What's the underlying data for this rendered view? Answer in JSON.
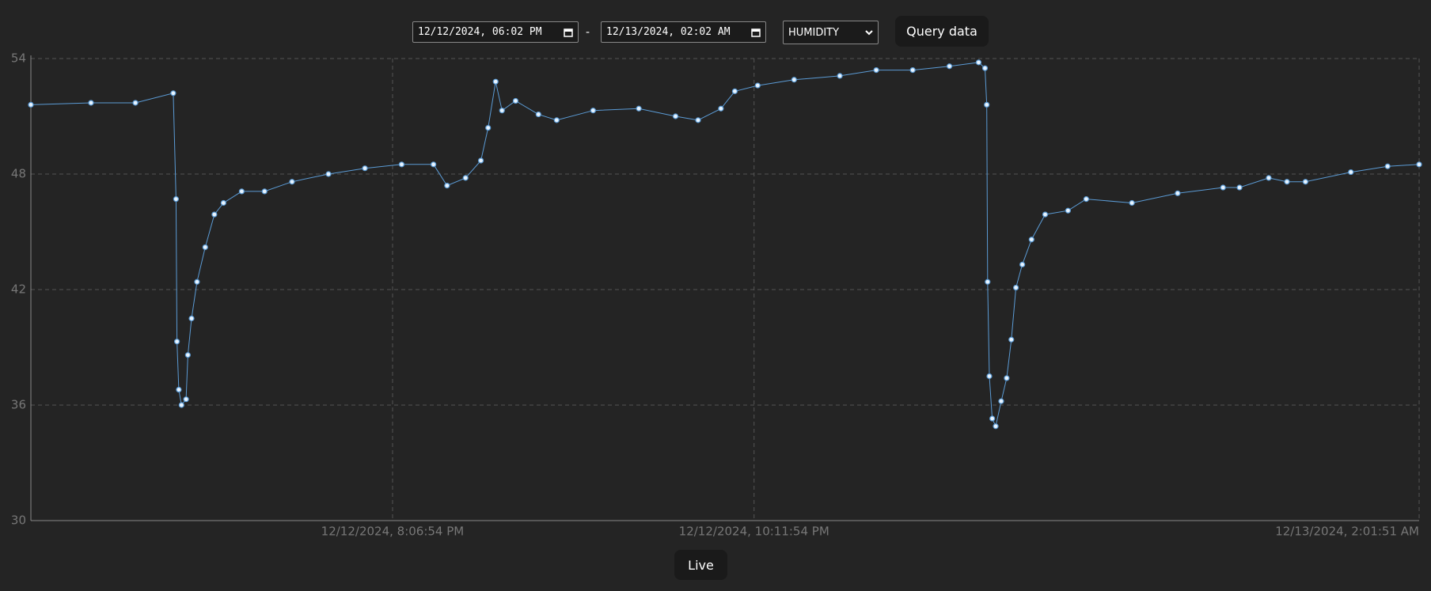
{
  "controls": {
    "start": "12/12/2024, 06:02 PM",
    "separator": "-",
    "end": "12/13/2024, 02:02 AM",
    "metric": "HUMIDITY",
    "query": "Query data",
    "live": "Live"
  },
  "chart_data": {
    "type": "line",
    "color": "#5b9bd5",
    "marker_fill": "#e8f4ff",
    "grid": true,
    "x": [
      "2024-12-12T18:01:51",
      "2024-12-12T18:22:39",
      "2024-12-12T18:38:00",
      "2024-12-12T18:51:05",
      "2024-12-12T18:52:02",
      "2024-12-12T18:52:22",
      "2024-12-12T18:53:00",
      "2024-12-12T18:53:56",
      "2024-12-12T18:55:31",
      "2024-12-12T18:56:08",
      "2024-12-12T18:57:25",
      "2024-12-12T18:59:18",
      "2024-12-12T19:02:08",
      "2024-12-12T19:05:18",
      "2024-12-12T19:08:27",
      "2024-12-12T19:14:45",
      "2024-12-12T19:22:39",
      "2024-12-12T19:32:09",
      "2024-12-12T19:44:45",
      "2024-12-12T19:57:21",
      "2024-12-12T20:10:03",
      "2024-12-12T20:21:03",
      "2024-12-12T20:25:45",
      "2024-12-12T20:32:09",
      "2024-12-12T20:37:27",
      "2024-12-12T20:39:57",
      "2024-12-12T20:42:33",
      "2024-12-12T20:44:45",
      "2024-12-12T20:49:27",
      "2024-12-12T20:57:21",
      "2024-12-12T21:03:39",
      "2024-12-12T21:16:15",
      "2024-12-12T21:32:03",
      "2024-12-12T21:44:45",
      "2024-12-12T21:52:33",
      "2024-12-12T22:00:27",
      "2024-12-12T22:05:15",
      "2024-12-12T22:13:09",
      "2024-12-12T22:25:45",
      "2024-12-12T22:41:33",
      "2024-12-12T22:54:09",
      "2024-12-12T23:06:45",
      "2024-12-12T23:19:27",
      "2024-12-12T23:29:33",
      "2024-12-12T23:31:45",
      "2024-12-12T23:32:21",
      "2024-12-12T23:32:39",
      "2024-12-12T23:33:15",
      "2024-12-12T23:34:15",
      "2024-12-12T23:35:27",
      "2024-12-12T23:37:21",
      "2024-12-12T23:39:15",
      "2024-12-12T23:40:51",
      "2024-12-12T23:42:27",
      "2024-12-12T23:44:39",
      "2024-12-12T23:47:51",
      "2024-12-12T23:52:33",
      "2024-12-13T00:00:27",
      "2024-12-13T00:06:45",
      "2024-12-13T00:22:33",
      "2024-12-13T00:38:21",
      "2024-12-13T00:54:03",
      "2024-12-13T00:59:45",
      "2024-12-13T01:09:51",
      "2024-12-13T01:16:09",
      "2024-12-13T01:22:33",
      "2024-12-13T01:38:15",
      "2024-12-13T01:50:57",
      "2024-12-13T02:01:51"
    ],
    "values": [
      51.6,
      51.7,
      51.7,
      52.2,
      46.7,
      39.3,
      36.8,
      36.0,
      36.3,
      38.6,
      40.5,
      42.4,
      44.2,
      45.9,
      46.5,
      47.1,
      47.1,
      47.6,
      48.0,
      48.3,
      48.5,
      48.5,
      47.4,
      47.8,
      48.7,
      50.4,
      52.8,
      51.3,
      51.8,
      51.1,
      50.8,
      51.3,
      51.4,
      51.0,
      50.8,
      51.4,
      52.3,
      52.6,
      52.9,
      53.1,
      53.4,
      53.4,
      53.6,
      53.8,
      53.5,
      51.6,
      42.4,
      37.5,
      35.3,
      34.9,
      36.2,
      37.4,
      39.4,
      42.1,
      43.3,
      44.6,
      45.9,
      46.1,
      46.7,
      46.5,
      47.0,
      47.3,
      47.3,
      47.8,
      47.6,
      47.6,
      48.1,
      48.4,
      48.5
    ],
    "xlim": [
      "2024-12-12T18:01:51",
      "2024-12-13T02:01:51"
    ],
    "xticks": [
      {
        "value": "2024-12-12T20:06:54",
        "label": "12/12/2024, 8:06:54 PM"
      },
      {
        "value": "2024-12-12T22:11:54",
        "label": "12/12/2024, 10:11:54 PM"
      },
      {
        "value": "2024-12-13T02:01:51",
        "label": "12/13/2024, 2:01:51 AM"
      }
    ],
    "ylim": [
      30,
      54
    ],
    "yticks": [
      30,
      36,
      42,
      48,
      54
    ]
  }
}
